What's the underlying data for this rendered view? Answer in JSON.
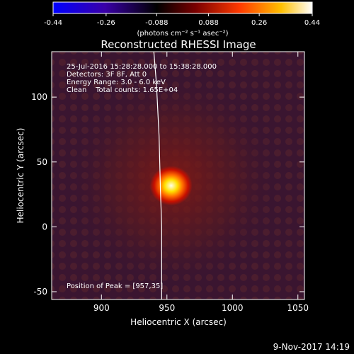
{
  "chart_data": {
    "type": "heatmap",
    "title": "Reconstructed RHESSI Image",
    "xlabel": "Heliocentric X (arcsec)",
    "ylabel": "Heliocentric Y (arcsec)",
    "xlim": [
      862,
      1055
    ],
    "ylim": [
      -56,
      135
    ],
    "x_ticks": [
      "900",
      "950",
      "1000",
      "1050"
    ],
    "x_tick_values": [
      900,
      950,
      1000,
      1050
    ],
    "y_ticks": [
      "-50",
      "0",
      "50",
      "100"
    ],
    "y_tick_values": [
      -50,
      0,
      50,
      100
    ],
    "colorbar": {
      "range": [
        -0.44,
        0.44
      ],
      "ticks": [
        "-0.44",
        "-0.26",
        "-0.088",
        "0.088",
        "0.26",
        "0.44"
      ],
      "tick_values": [
        -0.44,
        -0.26,
        -0.088,
        0.088,
        0.26,
        0.44
      ],
      "label": "(photons cm⁻² s⁻¹ asec⁻²)",
      "colormap": [
        "#0000ff",
        "#3a00a8",
        "#000000",
        "#7a0000",
        "#ff3a00",
        "#ffc000",
        "#ffffff"
      ]
    },
    "source_peak": {
      "x": 957,
      "y": 35
    },
    "limb_curve": [
      [
        940,
        135
      ],
      [
        942,
        110
      ],
      [
        944,
        70
      ],
      [
        945,
        30
      ],
      [
        946,
        0
      ],
      [
        946,
        -56
      ]
    ],
    "annotations": [
      "25-Jul-2016 15:28:28.000 to 15:38:28.000",
      "Detectors: 3F 8F, Att 0",
      "Energy Range: 3.0 - 6.0 keV",
      "Clean    Total counts: 1.65E+04"
    ],
    "peak_label": "Position of Peak = [957,35]",
    "footer_date": "9-Nov-2017 14:19"
  }
}
